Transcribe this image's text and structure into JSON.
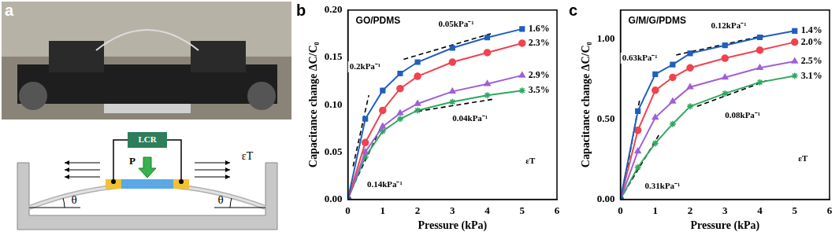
{
  "diagram": {
    "panel": "a",
    "texts": {
      "meter": "LCR",
      "pressure": "P",
      "strain": "εT",
      "angle_left": "θ",
      "angle_right": "θ"
    }
  },
  "chart_data": [
    {
      "panel": "b",
      "type": "line",
      "title": "GO/PDMS",
      "x_label": "Pressure (kPa)",
      "y_label": "Capacitance change ΔC/C₀",
      "x": [
        0,
        0.5,
        1,
        1.5,
        2,
        3,
        4,
        5
      ],
      "series": [
        {
          "name": "1.6%",
          "color": "#1f5fbf",
          "marker": "square",
          "values": [
            0,
            0.085,
            0.115,
            0.133,
            0.145,
            0.16,
            0.171,
            0.18
          ]
        },
        {
          "name": "2.3%",
          "color": "#f0434f",
          "marker": "circle",
          "values": [
            0,
            0.06,
            0.094,
            0.117,
            0.13,
            0.145,
            0.155,
            0.165
          ]
        },
        {
          "name": "2.9%",
          "color": "#a05fd8",
          "marker": "triangle",
          "values": [
            0,
            0.05,
            0.077,
            0.091,
            0.101,
            0.114,
            0.122,
            0.131
          ]
        },
        {
          "name": "3.5%",
          "color": "#2ea860",
          "marker": "star",
          "values": [
            0,
            0.045,
            0.072,
            0.085,
            0.094,
            0.103,
            0.11,
            0.115
          ]
        }
      ],
      "trend_lines": [
        {
          "x": [
            0.15,
            0.6
          ],
          "y": [
            0.035,
            0.11
          ],
          "line_style": "dashed"
        },
        {
          "x": [
            0.1,
            1.0
          ],
          "y": [
            0.01,
            0.08
          ],
          "line_style": "dashed"
        },
        {
          "x": [
            1.6,
            4.1
          ],
          "y": [
            0.148,
            0.175
          ],
          "line_style": "dashed"
        },
        {
          "x": [
            2.0,
            4.2
          ],
          "y": [
            0.093,
            0.106
          ],
          "line_style": "dashed"
        }
      ],
      "annotations": [
        {
          "text": "0.2kPa⁻¹",
          "x": 0.05,
          "y": 0.14
        },
        {
          "text": "0.14kPa⁻¹",
          "x": 0.55,
          "y": 0.015
        },
        {
          "text": "0.05kPa⁻¹",
          "x": 2.6,
          "y": 0.185
        },
        {
          "text": "0.04kPa⁻¹",
          "x": 3.0,
          "y": 0.085
        },
        {
          "text": "εT",
          "x": 5.1,
          "y": 0.04
        }
      ],
      "xlim": [
        0,
        6
      ],
      "xticks": [
        0,
        1,
        2,
        3,
        4,
        5,
        6
      ],
      "ylim": [
        0,
        0.2
      ],
      "yticks": [
        {
          "value": 0,
          "label": "0.00"
        },
        {
          "value": 0.05,
          "label": "0.05"
        },
        {
          "value": 0.1,
          "label": "0.10"
        },
        {
          "value": 0.15,
          "label": "0.15"
        },
        {
          "value": 0.2,
          "label": "0.20"
        }
      ],
      "grid": false
    },
    {
      "panel": "c",
      "type": "line",
      "title": "G/M/G/PDMS",
      "x_label": "Pressure (kPa)",
      "y_label": "Capacitance change ΔC/C₀",
      "x": [
        0,
        0.5,
        1,
        1.5,
        2,
        3,
        4,
        5
      ],
      "series": [
        {
          "name": "1.4%",
          "color": "#1f5fbf",
          "marker": "square",
          "values": [
            0,
            0.55,
            0.78,
            0.84,
            0.91,
            0.96,
            1.01,
            1.05
          ]
        },
        {
          "name": "2.0%",
          "color": "#f0434f",
          "marker": "circle",
          "values": [
            0,
            0.43,
            0.68,
            0.76,
            0.82,
            0.88,
            0.93,
            0.98
          ]
        },
        {
          "name": "2.5%",
          "color": "#a05fd8",
          "marker": "triangle",
          "values": [
            0,
            0.3,
            0.51,
            0.61,
            0.7,
            0.76,
            0.82,
            0.86
          ]
        },
        {
          "name": "3.1%",
          "color": "#2ea860",
          "marker": "star",
          "values": [
            0,
            0.2,
            0.35,
            0.47,
            0.58,
            0.66,
            0.73,
            0.77
          ]
        }
      ],
      "trend_lines": [
        {
          "x": [
            0.2,
            0.55
          ],
          "y": [
            0.2,
            0.62
          ],
          "line_style": "dashed"
        },
        {
          "x": [
            0.1,
            1.1
          ],
          "y": [
            0.04,
            0.4
          ],
          "line_style": "dashed"
        },
        {
          "x": [
            1.6,
            4.1
          ],
          "y": [
            0.9,
            1.02
          ],
          "line_style": "dashed"
        },
        {
          "x": [
            2.2,
            4.2
          ],
          "y": [
            0.58,
            0.74
          ],
          "line_style": "dashed"
        }
      ],
      "annotations": [
        {
          "text": "0.63kPa⁻¹",
          "x": 0.05,
          "y": 0.88
        },
        {
          "text": "0.31kPa⁻¹",
          "x": 0.7,
          "y": 0.08
        },
        {
          "text": "0.12kPa⁻¹",
          "x": 2.6,
          "y": 1.08
        },
        {
          "text": "0.08kPa⁻¹",
          "x": 3.0,
          "y": 0.52
        },
        {
          "text": "εT",
          "x": 5.1,
          "y": 0.25
        }
      ],
      "xlim": [
        0,
        6
      ],
      "xticks": [
        0,
        1,
        2,
        3,
        4,
        5,
        6
      ],
      "ylim": [
        0,
        1.18
      ],
      "yticks": [
        {
          "value": 0,
          "label": "0.00"
        },
        {
          "value": 0.5,
          "label": "0.50"
        },
        {
          "value": 1,
          "label": "1.00"
        }
      ],
      "grid": false
    }
  ]
}
